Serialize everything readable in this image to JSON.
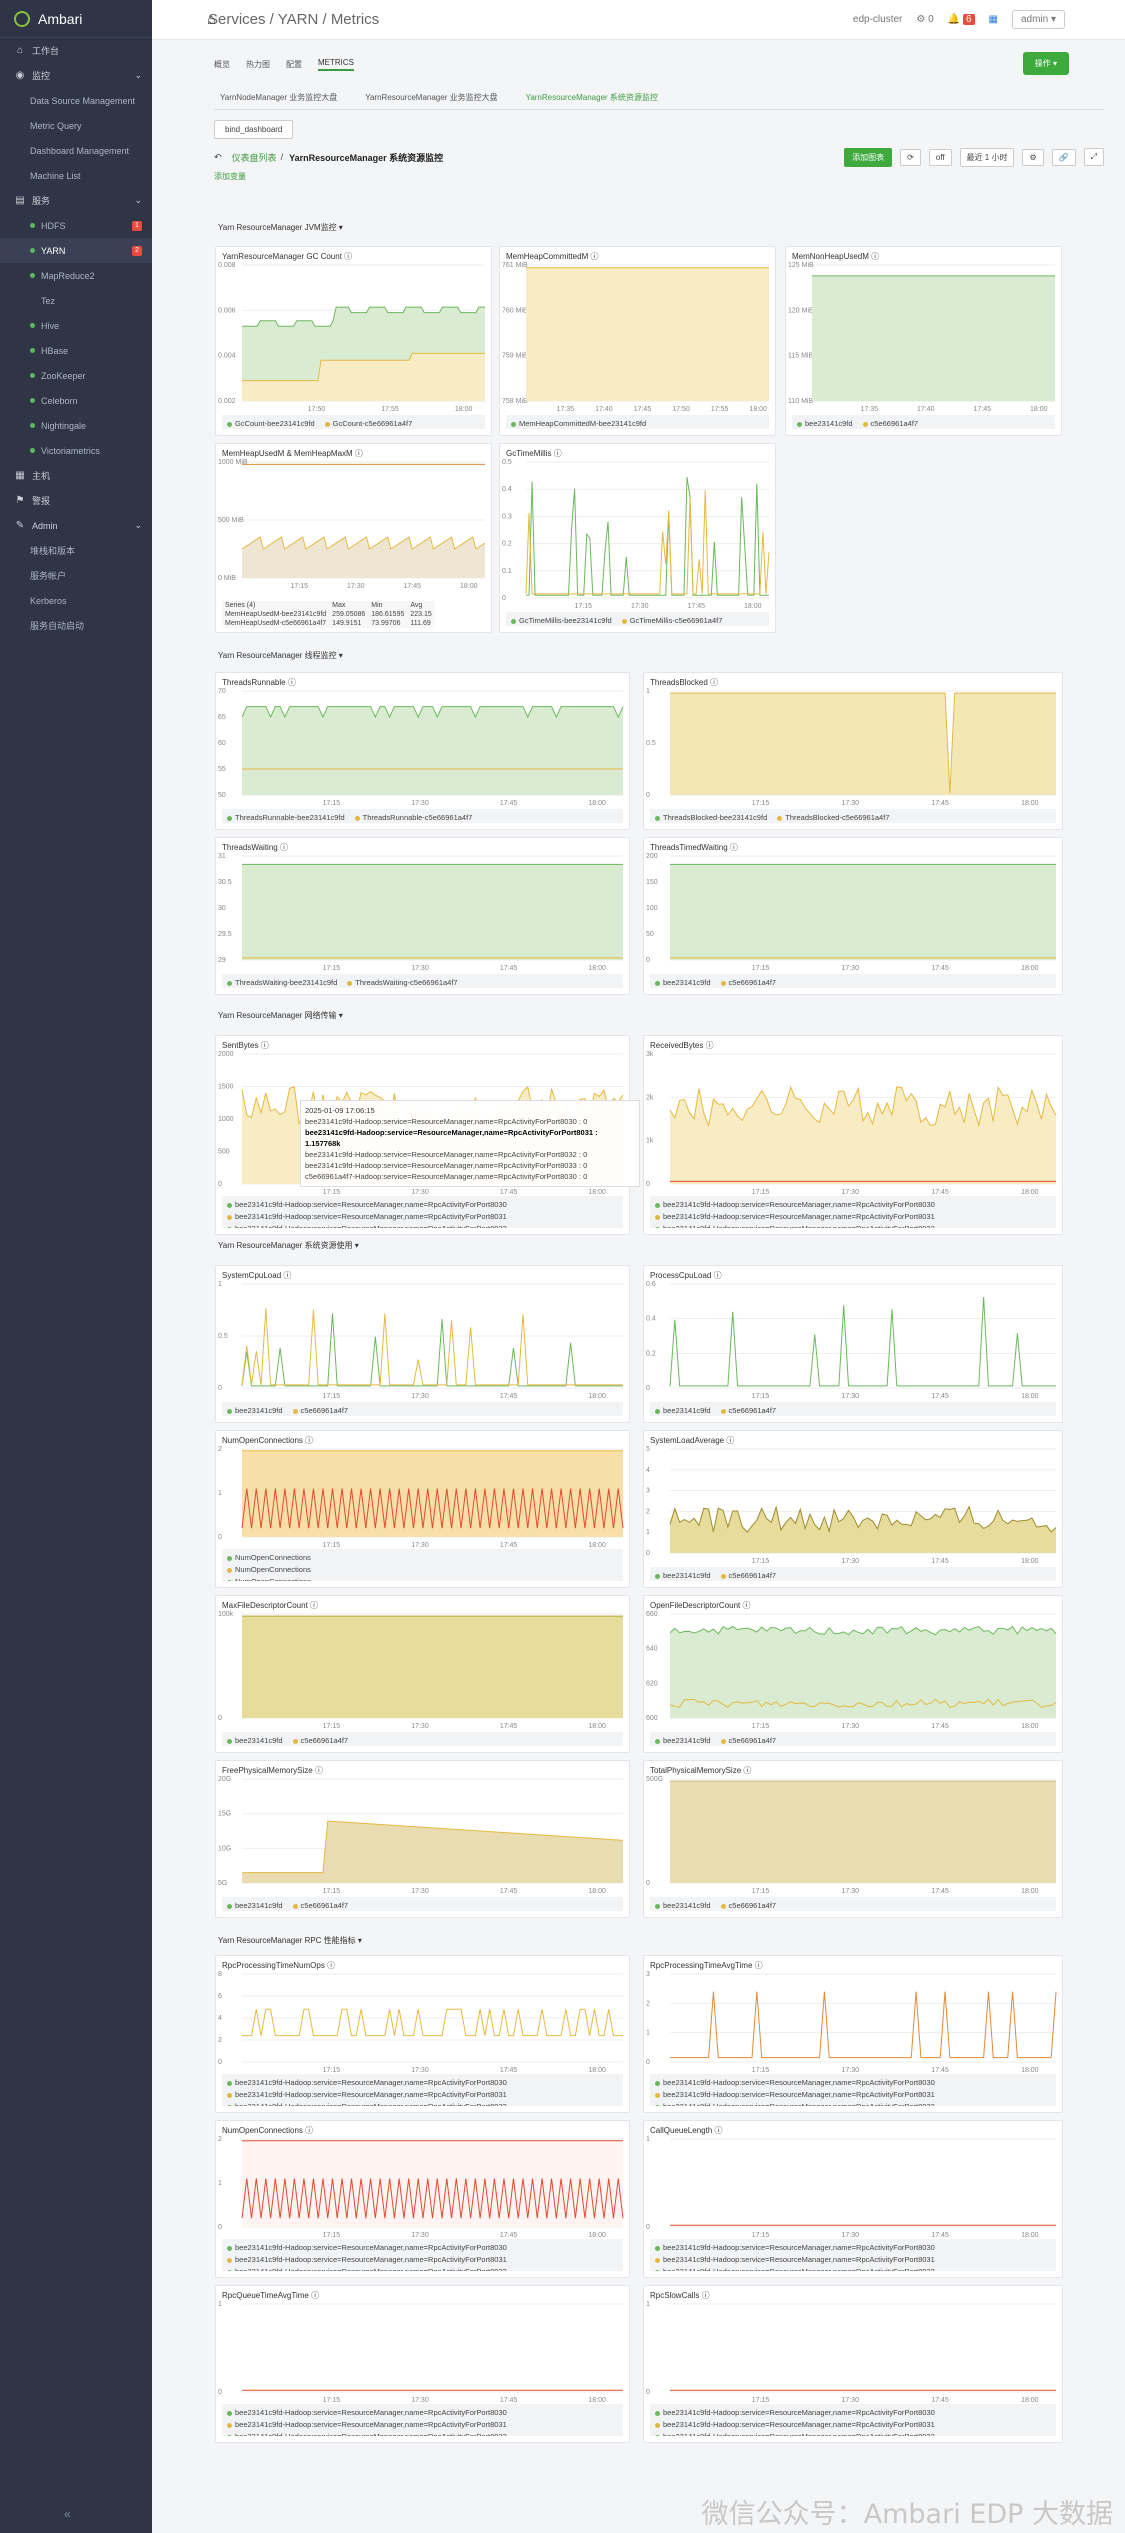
{
  "app": {
    "title": "Ambari"
  },
  "sidebar": {
    "items": [
      {
        "label": "工作台",
        "icon": "home-icon",
        "type": "top"
      },
      {
        "label": "监控",
        "icon": "monitor-icon",
        "type": "top",
        "chev": true
      },
      {
        "label": "Data Source Management",
        "type": "sub"
      },
      {
        "label": "Metric Query",
        "type": "sub"
      },
      {
        "label": "Dashboard Management",
        "type": "sub"
      },
      {
        "label": "Machine List",
        "type": "sub"
      },
      {
        "label": "服务",
        "icon": "services-icon",
        "type": "top",
        "chev": true
      },
      {
        "label": "HDFS",
        "type": "svc",
        "badge": "1"
      },
      {
        "label": "YARN",
        "type": "svc",
        "badge": "2",
        "active": true
      },
      {
        "label": "MapReduce2",
        "type": "svc"
      },
      {
        "label": "Tez",
        "type": "svc-nodot"
      },
      {
        "label": "Hive",
        "type": "svc"
      },
      {
        "label": "HBase",
        "type": "svc"
      },
      {
        "label": "ZooKeeper",
        "type": "svc"
      },
      {
        "label": "Celeborn",
        "type": "svc"
      },
      {
        "label": "Nightingale",
        "type": "svc"
      },
      {
        "label": "Victoriametrics",
        "type": "svc"
      },
      {
        "label": "主机",
        "icon": "host-icon",
        "type": "top"
      },
      {
        "label": "警报",
        "icon": "alert-icon",
        "type": "top"
      },
      {
        "label": "Admin",
        "icon": "wrench-icon",
        "type": "top",
        "chev": true
      },
      {
        "label": "堆栈和版本",
        "type": "sub"
      },
      {
        "label": "服务帐户",
        "type": "sub"
      },
      {
        "label": "Kerberos",
        "type": "sub"
      },
      {
        "label": "服务自动启动",
        "type": "sub"
      }
    ]
  },
  "topbar": {
    "breadcrumb": "Services / YARN / Metrics",
    "cluster": "edp-cluster",
    "ops_count": "0",
    "alerts_count": "6",
    "user": "admin ▾"
  },
  "tabs": [
    "概览",
    "热力图",
    "配置",
    "METRICS"
  ],
  "actions_label": "操作 ▾",
  "subtabs": [
    "YarnNodeManager 业务监控大盘",
    "YarnResourceManager 业务监控大盘",
    "YarnResourceManager 系统资源监控"
  ],
  "bind_label": "bind_dashboard",
  "dash": {
    "back": "仪表盘列表",
    "title": "YarnResourceManager 系统资源监控",
    "add_chart": "添加图表",
    "refresh": "off",
    "range": "最近 1 小时",
    "add_var": "添加变量"
  },
  "groups": [
    {
      "title": "Yarn ResourceManager JVM监控"
    },
    {
      "title": "Yarn ResourceManager 线程监控"
    },
    {
      "title": "Yarn ResourceManager 网络传输"
    },
    {
      "title": "Yarn ResourceManager 系统资源使用"
    },
    {
      "title": "Yarn ResourceManager RPC 性能指标"
    }
  ],
  "colors": {
    "green": "#6bb85c",
    "yellow": "#e5b941",
    "red": "#e04a2f",
    "blue": "#5b9bd5"
  },
  "panels": [
    {
      "title": "YarnResourceManager GC Count",
      "legend": [
        "GcCount-bee23141c9fd",
        "GcCount-c5e66961a4f7"
      ],
      "yticks": [
        "0.008",
        "0.006",
        "0.004",
        "0.002"
      ],
      "xticks": [
        "17:50",
        "17:55",
        "18:00"
      ]
    },
    {
      "title": "MemHeapCommittedM",
      "legend": [
        "MemHeapCommittedM-bee23141c9fd",
        "MemHeapCommittedM-c5e66961a4f7"
      ],
      "yticks": [
        "761 MiB",
        "760 MiB",
        "759 MiB",
        "758 MiB"
      ],
      "xticks": [
        "17:35",
        "17:40",
        "17:45",
        "17:50",
        "17:55",
        "18:00"
      ]
    },
    {
      "title": "MemNonHeapUsedM",
      "legend": [
        "bee23141c9fd",
        "c5e66961a4f7"
      ],
      "yticks": [
        "125 MiB",
        "120 MiB",
        "115 MiB",
        "110 MiB"
      ],
      "xticks": [
        "17:35",
        "17:40",
        "17:45",
        "18:00"
      ]
    },
    {
      "title": "MemHeapUsedM & MemHeapMaxM",
      "legend": [],
      "yticks": [
        "1000 MiB",
        "500 MiB",
        "0 MiB"
      ],
      "xticks": [
        "17:15",
        "17:30",
        "17:45",
        "18:00"
      ],
      "table": {
        "head": [
          "Series (4)",
          "Max",
          "Min",
          "Avg"
        ],
        "rows": [
          [
            "MemHeapUsedM-bee23141c9fd",
            "259.05086",
            "186.61595",
            "223.15"
          ],
          [
            "MemHeapUsedM-c5e66961a4f7",
            "149.9151",
            "73.99706",
            "111.69"
          ]
        ]
      }
    },
    {
      "title": "GcTimeMillis",
      "legend": [
        "GcTimeMillis-bee23141c9fd",
        "GcTimeMillis-c5e66961a4f7"
      ],
      "yticks": [
        "0.5",
        "0.4",
        "0.3",
        "0.2",
        "0.1",
        "0"
      ],
      "xticks": [
        "17:15",
        "17:30",
        "17:45",
        "18:00"
      ]
    },
    {
      "title": "ThreadsRunnable",
      "legend": [
        "ThreadsRunnable-bee23141c9fd",
        "ThreadsRunnable-c5e66961a4f7"
      ],
      "yticks": [
        "70",
        "65",
        "60",
        "55",
        "50"
      ],
      "xticks": [
        "17:15",
        "17:30",
        "17:45",
        "18:00"
      ]
    },
    {
      "title": "ThreadsBlocked",
      "legend": [
        "ThreadsBlocked-bee23141c9fd",
        "ThreadsBlocked-c5e66961a4f7"
      ],
      "yticks": [
        "1",
        "0.5",
        "0"
      ],
      "xticks": [
        "17:15",
        "17:30",
        "17:45",
        "18:00"
      ]
    },
    {
      "title": "ThreadsWaiting",
      "legend": [
        "ThreadsWaiting-bee23141c9fd",
        "ThreadsWaiting-c5e66961a4f7"
      ],
      "yticks": [
        "31",
        "30.5",
        "30",
        "29.5",
        "29"
      ],
      "xticks": [
        "17:15",
        "17:30",
        "17:45",
        "18:00"
      ]
    },
    {
      "title": "ThreadsTimedWaiting",
      "legend": [
        "bee23141c9fd",
        "c5e66961a4f7"
      ],
      "yticks": [
        "200",
        "150",
        "100",
        "50",
        "0"
      ],
      "xticks": [
        "17:15",
        "17:30",
        "17:45",
        "18:00"
      ]
    },
    {
      "title": "SentBytes",
      "legend": [
        "bee23141c9fd-Hadoop:service=ResourceManager,name=RpcActivityForPort8030",
        "bee23141c9fd-Hadoop:service=ResourceManager,name=RpcActivityForPort8031",
        "bee23141c9fd-Hadoop:service=ResourceManager,name=RpcActivityForPort8032"
      ],
      "yticks": [
        "2000",
        "1500",
        "1000",
        "500",
        "0"
      ],
      "xticks": [
        "17:15",
        "17:30",
        "17:45",
        "18:00"
      ]
    },
    {
      "title": "ReceivedBytes",
      "legend": [
        "bee23141c9fd-Hadoop:service=ResourceManager,name=RpcActivityForPort8030",
        "bee23141c9fd-Hadoop:service=ResourceManager,name=RpcActivityForPort8031",
        "bee23141c9fd-Hadoop:service=ResourceManager,name=RpcActivityForPort8032"
      ],
      "yticks": [
        "3k",
        "2k",
        "1k",
        "0"
      ],
      "xticks": [
        "17:15",
        "17:30",
        "17:45",
        "18:00"
      ]
    },
    {
      "title": "SystemCpuLoad",
      "legend": [
        "bee23141c9fd",
        "c5e66961a4f7"
      ],
      "yticks": [
        "1",
        "0.5",
        "0"
      ],
      "xticks": [
        "17:15",
        "17:30",
        "17:45",
        "18:00"
      ]
    },
    {
      "title": "ProcessCpuLoad",
      "legend": [
        "bee23141c9fd",
        "c5e66961a4f7"
      ],
      "yticks": [
        "0.6",
        "0.4",
        "0.2",
        "0"
      ],
      "xticks": [
        "17:15",
        "17:30",
        "17:45",
        "18:00"
      ]
    },
    {
      "title": "NumOpenConnections",
      "legend": [
        "NumOpenConnections",
        "NumOpenConnections",
        "NumOpenConnections",
        "NumOpenConnections",
        "NumOpenConnections"
      ],
      "yticks": [
        "2",
        "1",
        "0"
      ],
      "xticks": [
        "17:15",
        "17:30",
        "17:45",
        "18:00"
      ]
    },
    {
      "title": "SystemLoadAverage",
      "legend": [
        "bee23141c9fd",
        "c5e66961a4f7"
      ],
      "yticks": [
        "5",
        "4",
        "3",
        "2",
        "1",
        "0"
      ],
      "xticks": [
        "17:15",
        "17:30",
        "17:45",
        "18:00"
      ]
    },
    {
      "title": "MaxFileDescriptorCount",
      "legend": [
        "bee23141c9fd",
        "c5e66961a4f7"
      ],
      "yticks": [
        "100k",
        "0"
      ],
      "xticks": [
        "17:15",
        "17:30",
        "17:45",
        "18:00"
      ]
    },
    {
      "title": "OpenFileDescriptorCount",
      "legend": [
        "bee23141c9fd",
        "c5e66961a4f7"
      ],
      "yticks": [
        "660",
        "640",
        "620",
        "600"
      ],
      "xticks": [
        "17:15",
        "17:30",
        "17:45",
        "18:00"
      ]
    },
    {
      "title": "FreePhysicalMemorySize",
      "legend": [
        "bee23141c9fd",
        "c5e66961a4f7"
      ],
      "yticks": [
        "20G",
        "15G",
        "10G",
        "5G"
      ],
      "xticks": [
        "17:15",
        "17:30",
        "17:45",
        "18:00"
      ]
    },
    {
      "title": "TotalPhysicalMemorySize",
      "legend": [
        "bee23141c9fd",
        "c5e66961a4f7"
      ],
      "yticks": [
        "500G",
        "0"
      ],
      "xticks": [
        "17:15",
        "17:30",
        "17:45",
        "18:00"
      ]
    },
    {
      "title": "RpcProcessingTimeNumOps",
      "legend": [
        "bee23141c9fd-Hadoop:service=ResourceManager,name=RpcActivityForPort8030",
        "bee23141c9fd-Hadoop:service=ResourceManager,name=RpcActivityForPort8031",
        "bee23141c9fd-Hadoop:service=ResourceManager,name=RpcActivityForPort8032"
      ],
      "yticks": [
        "8",
        "6",
        "4",
        "2",
        "0"
      ],
      "xticks": [
        "17:15",
        "17:30",
        "17:45",
        "18:00"
      ]
    },
    {
      "title": "RpcProcessingTimeAvgTime",
      "legend": [
        "bee23141c9fd-Hadoop:service=ResourceManager,name=RpcActivityForPort8030",
        "bee23141c9fd-Hadoop:service=ResourceManager,name=RpcActivityForPort8031",
        "bee23141c9fd-Hadoop:service=ResourceManager,name=RpcActivityForPort8032"
      ],
      "yticks": [
        "3",
        "2",
        "1",
        "0"
      ],
      "xticks": [
        "17:15",
        "17:30",
        "17:45",
        "18:00"
      ]
    },
    {
      "title": "NumOpenConnections",
      "legend": [
        "bee23141c9fd-Hadoop:service=ResourceManager,name=RpcActivityForPort8030",
        "bee23141c9fd-Hadoop:service=ResourceManager,name=RpcActivityForPort8031",
        "bee23141c9fd-Hadoop:service=ResourceManager,name=RpcActivityForPort8032"
      ],
      "yticks": [
        "2",
        "1",
        "0"
      ],
      "xticks": [
        "17:15",
        "17:30",
        "17:45",
        "18:00"
      ]
    },
    {
      "title": "CallQueueLength",
      "legend": [
        "bee23141c9fd-Hadoop:service=ResourceManager,name=RpcActivityForPort8030",
        "bee23141c9fd-Hadoop:service=ResourceManager,name=RpcActivityForPort8031",
        "bee23141c9fd-Hadoop:service=ResourceManager,name=RpcActivityForPort8032"
      ],
      "yticks": [
        "1",
        "0"
      ],
      "xticks": [
        "17:15",
        "17:30",
        "17:45",
        "18:00"
      ]
    },
    {
      "title": "RpcQueueTimeAvgTime",
      "legend": [
        "bee23141c9fd-Hadoop:service=ResourceManager,name=RpcActivityForPort8030",
        "bee23141c9fd-Hadoop:service=ResourceManager,name=RpcActivityForPort8031",
        "bee23141c9fd-Hadoop:service=ResourceManager,name=RpcActivityForPort8032"
      ],
      "yticks": [
        "1",
        "0"
      ],
      "xticks": [
        "17:15",
        "17:30",
        "17:45",
        "18:00"
      ]
    },
    {
      "title": "RpcSlowCalls",
      "legend": [
        "bee23141c9fd-Hadoop:service=ResourceManager,name=RpcActivityForPort8030",
        "bee23141c9fd-Hadoop:service=ResourceManager,name=RpcActivityForPort8031",
        "bee23141c9fd-Hadoop:service=ResourceManager,name=RpcActivityForPort8032"
      ],
      "yticks": [
        "1",
        "0"
      ],
      "xticks": [
        "17:15",
        "17:30",
        "17:45",
        "18:00"
      ]
    }
  ],
  "tooltip": {
    "time": "2025-01-09 17:06:15",
    "rows": [
      "bee23141c9fd-Hadoop:service=ResourceManager,name=RpcActivityForPort8030 : 0",
      "bee23141c9fd-Hadoop:service=ResourceManager,name=RpcActivityForPort8031 : 1.157768k",
      "bee23141c9fd-Hadoop:service=ResourceManager,name=RpcActivityForPort8032 : 0",
      "bee23141c9fd-Hadoop:service=ResourceManager,name=RpcActivityForPort8033 : 0",
      "c5e66961a4f7-Hadoop:service=ResourceManager,name=RpcActivityForPort8030 : 0"
    ]
  },
  "watermark": "微信公众号：Ambari EDP 大数据"
}
